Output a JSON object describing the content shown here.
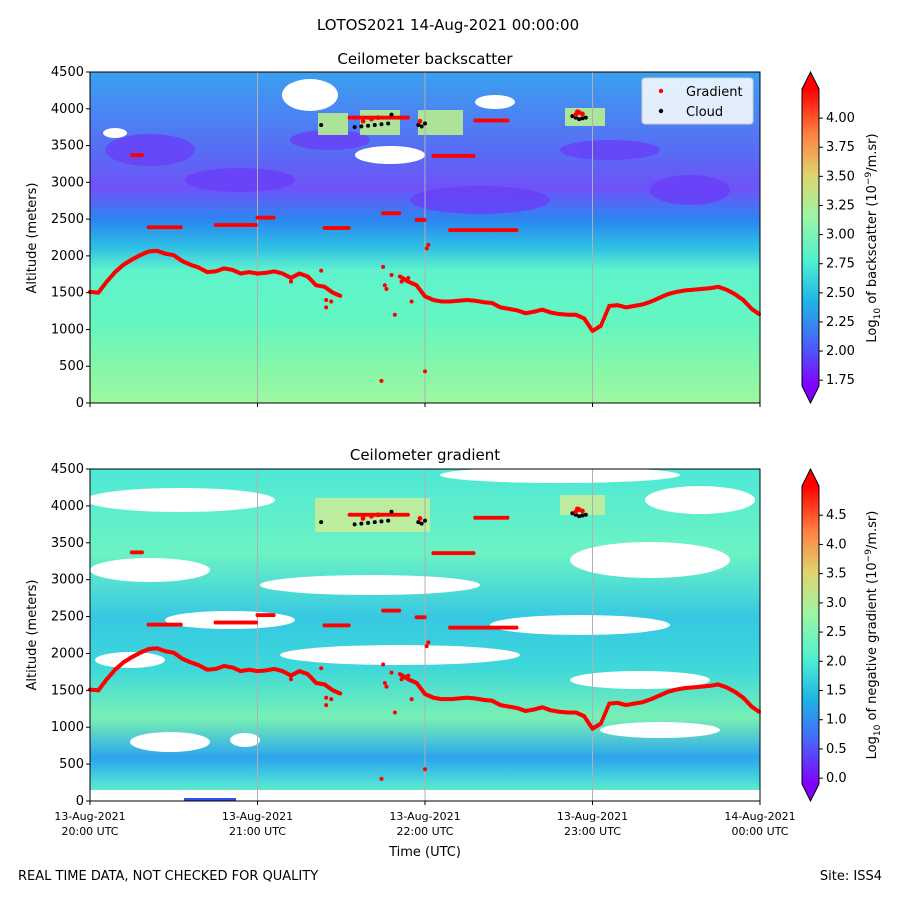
{
  "suptitle": "LOTOS2021 14-Aug-2021 00:00:00",
  "footer_left": "REAL TIME DATA, NOT CHECKED FOR QUALITY",
  "footer_right": "Site: ISS4",
  "chart_data": [
    {
      "type": "heatmap",
      "title": "Ceilometer backscatter",
      "xlabel": "",
      "ylabel": "Altitude (meters)",
      "xlim": [
        0,
        4
      ],
      "ylim": [
        0,
        4500
      ],
      "y_ticks": [
        0,
        500,
        1000,
        1500,
        2000,
        2500,
        3000,
        3500,
        4000,
        4500
      ],
      "colorbar": {
        "label_prefix": "Log",
        "label_sub": "10",
        "label_mid": " of backscatter (10",
        "label_sup": "−9",
        "label_end": "/m.sr)",
        "range": [
          1.7,
          4.25
        ],
        "ticks": [
          "1.75",
          "2.00",
          "2.25",
          "2.50",
          "2.75",
          "3.00",
          "3.25",
          "3.50",
          "3.75",
          "4.00"
        ],
        "tick_values": [
          1.75,
          2.0,
          2.25,
          2.5,
          2.75,
          3.0,
          3.25,
          3.5,
          3.75,
          4.0
        ]
      },
      "legend": {
        "placement": "top-right",
        "entries": [
          "Gradient",
          "Cloud"
        ]
      }
    },
    {
      "type": "heatmap",
      "title": "Ceilometer gradient",
      "xlabel": "Time (UTC)",
      "ylabel": "Altitude (meters)",
      "xlim": [
        0,
        4
      ],
      "ylim": [
        0,
        4500
      ],
      "y_ticks": [
        0,
        500,
        1000,
        1500,
        2000,
        2500,
        3000,
        3500,
        4000,
        4500
      ],
      "x_ticks": [
        {
          "value": 0,
          "line1": "13-Aug-2021",
          "line2": "20:00 UTC"
        },
        {
          "value": 1,
          "line1": "13-Aug-2021",
          "line2": "21:00 UTC"
        },
        {
          "value": 2,
          "line1": "13-Aug-2021",
          "line2": "22:00 UTC"
        },
        {
          "value": 3,
          "line1": "13-Aug-2021",
          "line2": "23:00 UTC"
        },
        {
          "value": 4,
          "line1": "14-Aug-2021",
          "line2": "00:00 UTC"
        }
      ],
      "colorbar": {
        "label_prefix": "Log",
        "label_sub": "10",
        "label_mid": " of negative gradient (10",
        "label_sup": "−9",
        "label_end": "/m.sr)",
        "range": [
          -0.1,
          5.0
        ],
        "ticks": [
          "0.0",
          "0.5",
          "1.0",
          "1.5",
          "2.0",
          "2.5",
          "3.0",
          "3.5",
          "4.0",
          "4.5"
        ],
        "tick_values": [
          0.0,
          0.5,
          1.0,
          1.5,
          2.0,
          2.5,
          3.0,
          3.5,
          4.0,
          4.5
        ]
      }
    }
  ],
  "series": {
    "boundary_layer_gradient": {
      "name": "Gradient",
      "color": "#ff0000",
      "x_hours": [
        0.0,
        0.05,
        0.1,
        0.15,
        0.2,
        0.25,
        0.3,
        0.35,
        0.4,
        0.45,
        0.5,
        0.55,
        0.6,
        0.65,
        0.7,
        0.75,
        0.8,
        0.85,
        0.9,
        0.95,
        1.0,
        1.05,
        1.1,
        1.15,
        1.2,
        1.25,
        1.3,
        1.35,
        1.4,
        1.45,
        1.5,
        1.55,
        1.6,
        1.65,
        1.7,
        1.75,
        1.8,
        1.85,
        1.9,
        1.95,
        2.0,
        2.05,
        2.1,
        2.15,
        2.2,
        2.25,
        2.3,
        2.35,
        2.4,
        2.45,
        2.5,
        2.55,
        2.6,
        2.65,
        2.7,
        2.75,
        2.8,
        2.85,
        2.9,
        2.95,
        3.0,
        3.05,
        3.1,
        3.15,
        3.2,
        3.25,
        3.3,
        3.35,
        3.4,
        3.45,
        3.5,
        3.55,
        3.6,
        3.65,
        3.7,
        3.75,
        3.8,
        3.85,
        3.9,
        3.95,
        4.0
      ],
      "altitude_m": [
        1510,
        1500,
        1650,
        1780,
        1880,
        1950,
        2010,
        2060,
        2070,
        2030,
        2010,
        1930,
        1880,
        1840,
        1780,
        1790,
        1830,
        1810,
        1760,
        1780,
        1760,
        1770,
        1790,
        1760,
        1700,
        1760,
        1720,
        1600,
        1580,
        1500,
        1450,
        null,
        null,
        null,
        null,
        null,
        null,
        1720,
        1650,
        1600,
        1450,
        1400,
        1380,
        1380,
        1390,
        1400,
        1390,
        1370,
        1360,
        1300,
        1280,
        1260,
        1220,
        1240,
        1270,
        1230,
        1210,
        1200,
        1200,
        1150,
        980,
        1050,
        1320,
        1330,
        1300,
        1320,
        1340,
        1380,
        1430,
        1480,
        1510,
        1530,
        1540,
        1550,
        1560,
        1580,
        1540,
        1480,
        1400,
        1280,
        1200
      ]
    },
    "gradient_layers": [
      {
        "name": "Gradient",
        "x_start": 0.25,
        "x_end": 0.32,
        "altitude_m": 3370
      },
      {
        "name": "Gradient",
        "x_start": 0.35,
        "x_end": 0.55,
        "altitude_m": 2390
      },
      {
        "name": "Gradient",
        "x_start": 0.75,
        "x_end": 1.0,
        "altitude_m": 2420
      },
      {
        "name": "Gradient",
        "x_start": 1.0,
        "x_end": 1.1,
        "altitude_m": 2520
      },
      {
        "name": "Gradient",
        "x_start": 1.4,
        "x_end": 1.55,
        "altitude_m": 2380
      },
      {
        "name": "Gradient",
        "x_start": 1.55,
        "x_end": 1.9,
        "altitude_m": 3880
      },
      {
        "name": "Gradient",
        "x_start": 1.75,
        "x_end": 1.85,
        "altitude_m": 2580
      },
      {
        "name": "Gradient",
        "x_start": 1.95,
        "x_end": 2.0,
        "altitude_m": 2490
      },
      {
        "name": "Gradient",
        "x_start": 2.05,
        "x_end": 2.3,
        "altitude_m": 3360
      },
      {
        "name": "Gradient",
        "x_start": 2.15,
        "x_end": 2.55,
        "altitude_m": 2350
      },
      {
        "name": "Gradient",
        "x_start": 2.3,
        "x_end": 2.5,
        "altitude_m": 3840
      }
    ],
    "cloud_base": {
      "name": "Cloud",
      "color": "#000000",
      "x_hours": [
        1.38,
        1.58,
        1.62,
        1.66,
        1.7,
        1.74,
        1.78,
        1.8,
        1.96,
        1.98,
        2.0,
        2.88,
        2.9,
        2.92,
        2.94,
        2.96
      ],
      "altitude_m": [
        3780,
        3750,
        3760,
        3770,
        3780,
        3790,
        3800,
        3920,
        3780,
        3760,
        3800,
        3900,
        3880,
        3860,
        3870,
        3880
      ]
    }
  }
}
